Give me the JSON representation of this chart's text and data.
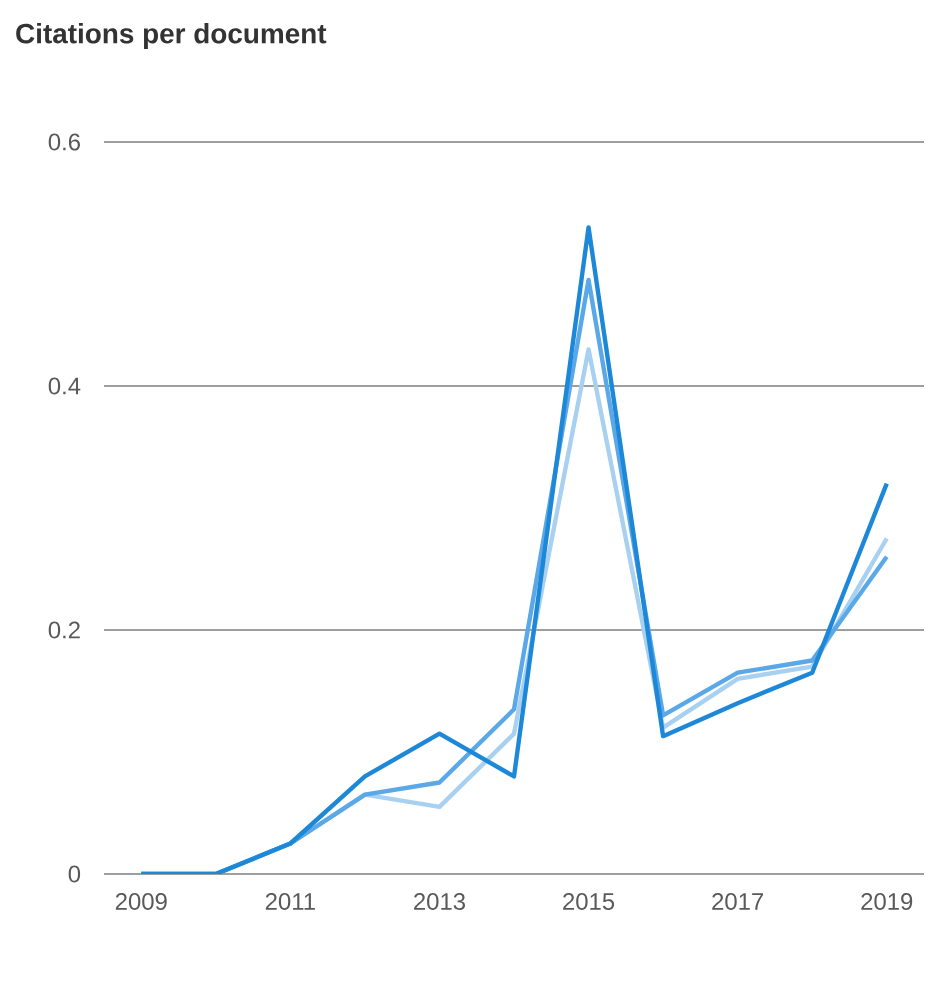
{
  "chart_data": {
    "type": "line",
    "title": "Citations per document",
    "x": [
      2009,
      2010,
      2011,
      2012,
      2013,
      2014,
      2015,
      2016,
      2017,
      2018,
      2019
    ],
    "series": [
      {
        "color": "#a8d0f0",
        "values": [
          0,
          0,
          0.025,
          0.065,
          0.055,
          0.115,
          0.43,
          0.12,
          0.16,
          0.17,
          0.275
        ]
      },
      {
        "color": "#5aa8e8",
        "values": [
          0,
          0,
          0.025,
          0.065,
          0.075,
          0.135,
          0.487,
          0.13,
          0.165,
          0.175,
          0.26
        ]
      },
      {
        "color": "#1e88d8",
        "values": [
          0,
          0,
          0.025,
          0.08,
          0.115,
          0.08,
          0.53,
          0.113,
          0.14,
          0.165,
          0.32
        ]
      }
    ],
    "xlim": [
      2008.5,
      2019.5
    ],
    "xticks": [
      2009,
      2011,
      2013,
      2015,
      2017,
      2019
    ],
    "ylim": [
      0,
      0.6
    ],
    "yticks": [
      0,
      0.2,
      0.4,
      0.6
    ],
    "grid": "y",
    "marker": "none",
    "line_style": "solid"
  }
}
